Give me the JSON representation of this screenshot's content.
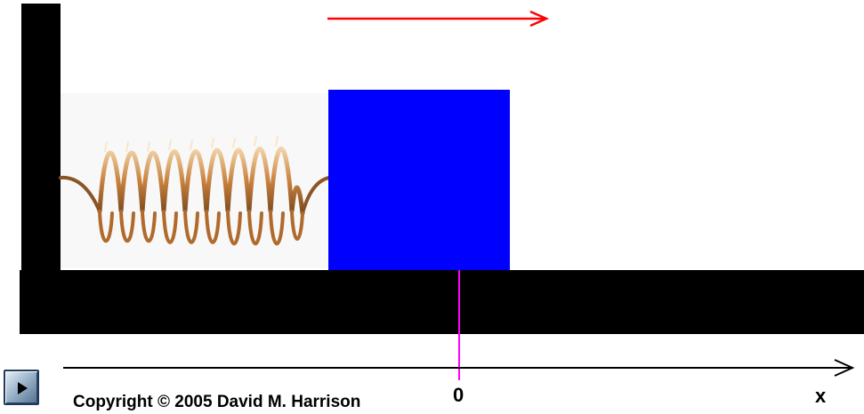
{
  "diagram": {
    "velocity_arrow_color": "#ff0000",
    "block_color": "#0000ff",
    "equilibrium_marker_color": "#ff00ff",
    "spring_color": "#c8823e",
    "wall_color": "#000000"
  },
  "axis": {
    "origin_label": "0",
    "axis_label": "x"
  },
  "controls": {
    "play_icon": "play-icon"
  },
  "footer": {
    "copyright": "Copyright © 2005 David M. Harrison"
  }
}
